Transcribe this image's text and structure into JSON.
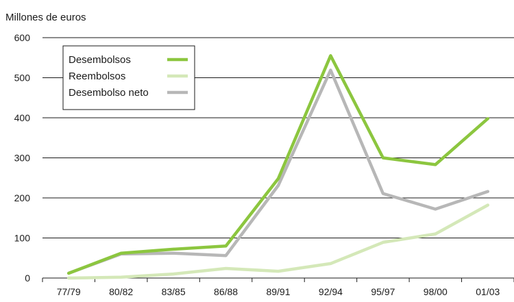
{
  "chart_data": {
    "type": "line",
    "title": "",
    "ylabel": "Millones de euros",
    "xlabel": "",
    "categories": [
      "77/79",
      "80/82",
      "83/85",
      "86/88",
      "89/91",
      "92/94",
      "95/97",
      "98/00",
      "01/03"
    ],
    "ylim": [
      0,
      600
    ],
    "yticks": [
      0,
      100,
      200,
      300,
      400,
      500,
      600
    ],
    "grid": true,
    "legend_position": "top-left",
    "series": [
      {
        "name": "Desembolsos",
        "color": "#8cc63f",
        "values": [
          12,
          62,
          72,
          80,
          248,
          555,
          300,
          283,
          398
        ]
      },
      {
        "name": "Reembolsos",
        "color": "#d4e8b8",
        "values": [
          0,
          2,
          10,
          24,
          17,
          36,
          89,
          110,
          182
        ]
      },
      {
        "name": "Desembolso neto",
        "color": "#b7b7b7",
        "values": [
          12,
          60,
          62,
          56,
          231,
          519,
          211,
          172,
          216
        ]
      }
    ]
  }
}
